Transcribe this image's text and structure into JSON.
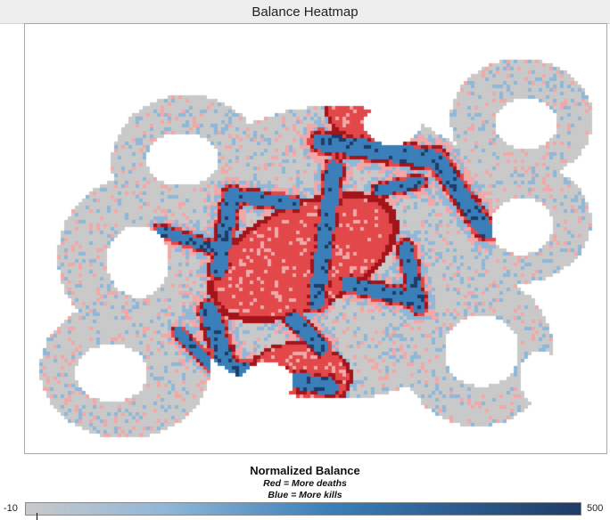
{
  "window": {
    "title": "Balance Heatmap"
  },
  "legend": {
    "title": "Normalized Balance",
    "note_red": "Red = More deaths",
    "note_blue": "Blue = More kills",
    "min_label": "-10",
    "max_label": "500"
  },
  "colors": {
    "neutral": "#c9c9c9",
    "light_blue": "#8fb7d8",
    "mid_blue": "#3a7fb9",
    "dark_blue": "#1f3b67",
    "light_red": "#f1a8a8",
    "red": "#e2474a",
    "dark_red": "#a3141b"
  }
}
